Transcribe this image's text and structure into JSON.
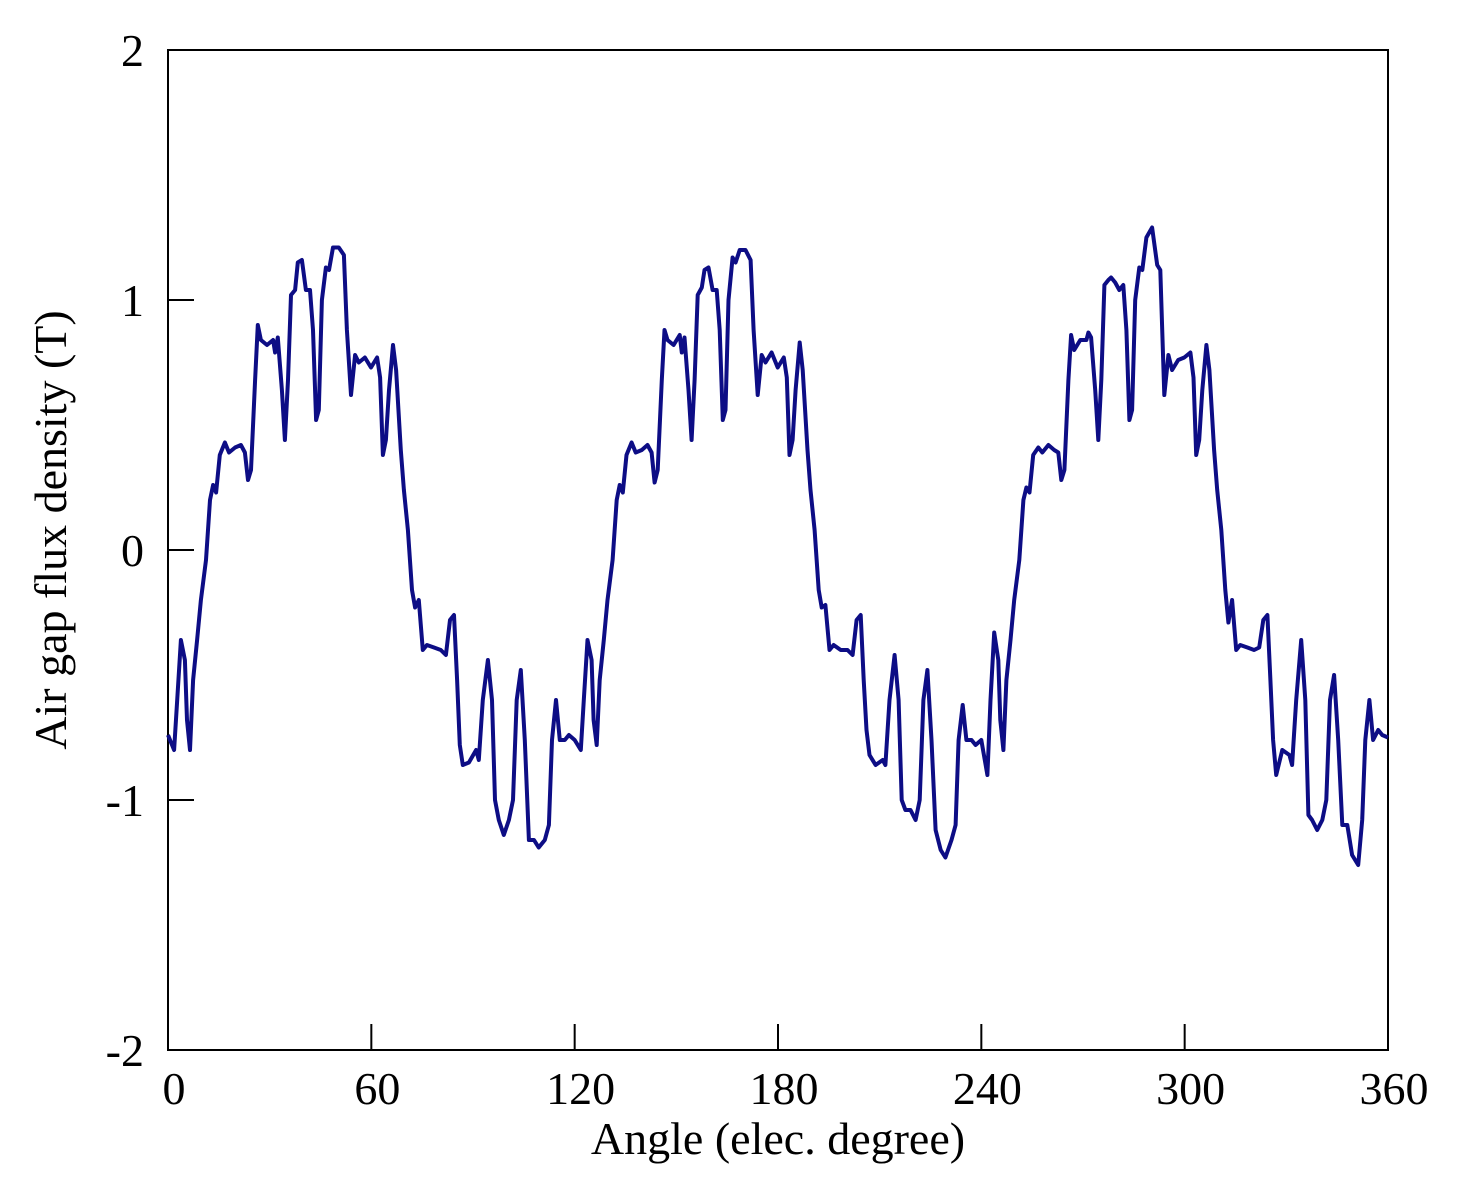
{
  "chart_data": {
    "type": "line",
    "xlabel": "Angle (elec. degree)",
    "ylabel": "Air gap flux density (T)",
    "color": "#0d0d85",
    "xlim": [
      0,
      360
    ],
    "xticks": [
      0,
      60,
      120,
      180,
      240,
      300,
      360
    ],
    "ylim": [
      -2,
      2
    ],
    "yticks": [
      -2,
      -1,
      0,
      1,
      2
    ],
    "x": [
      0,
      1.8,
      2.7,
      3.8,
      5,
      5.6,
      6.5,
      7.4,
      8.6,
      9.7,
      11.2,
      12.4,
      13.3,
      14.2,
      15.3,
      16.8,
      18,
      19.8,
      21.5,
      22.7,
      23.6,
      24.5,
      25.7,
      26.5,
      27.4,
      29.2,
      31,
      31.6,
      32.4,
      33.6,
      34.5,
      35.4,
      36.3,
      37.5,
      38.3,
      39.5,
      40.7,
      41.9,
      42.8,
      43.7,
      44.5,
      45.4,
      46.6,
      47.5,
      48.7,
      50.4,
      51.9,
      52.8,
      54,
      55.2,
      56.3,
      58.1,
      59.9,
      61.7,
      62.6,
      63.4,
      64.3,
      65.2,
      66.4,
      67.3,
      68.7,
      69.6,
      70.8,
      72,
      72.9,
      74,
      75.2,
      76.4,
      78.5,
      80.5,
      82,
      83.2,
      84.4,
      85.3,
      86.1,
      87,
      88.8,
      90.9,
      91.7,
      92.9,
      94.4,
      95.6,
      96.5,
      97.6,
      99.1,
      100.6,
      101.8,
      102.9,
      104.1,
      105.3,
      106.5,
      108,
      109.4,
      111.2,
      112.4,
      113.3,
      114.5,
      115.6,
      117.1,
      118.3,
      120,
      121.8,
      122.7,
      123.8,
      125,
      125.6,
      126.5,
      127.4,
      128.6,
      129.7,
      131.2,
      132.4,
      133.3,
      134.2,
      135.3,
      136.8,
      138,
      139.8,
      141.5,
      142.7,
      143.6,
      144.5,
      145.7,
      146.5,
      147.4,
      149.2,
      151,
      151.6,
      152.4,
      153.6,
      154.5,
      155.4,
      156.3,
      157.5,
      158.3,
      159.5,
      160.7,
      161.9,
      162.8,
      163.7,
      164.5,
      165.4,
      166.6,
      167.5,
      168.7,
      170.4,
      171.9,
      172.8,
      174,
      175.2,
      176.3,
      178.1,
      179.9,
      181.7,
      182.6,
      183.4,
      184.3,
      185.2,
      186.4,
      187.3,
      188.7,
      189.6,
      190.8,
      192,
      192.9,
      194,
      195.2,
      196.4,
      198.5,
      200.5,
      202,
      203.2,
      204.4,
      205.3,
      206.1,
      207,
      208.8,
      210.9,
      211.7,
      212.9,
      214.4,
      215.6,
      216.5,
      217.6,
      219.1,
      220.6,
      221.8,
      222.9,
      224.1,
      225.3,
      226.5,
      228,
      229.4,
      231.2,
      232.4,
      233.3,
      234.5,
      235.6,
      237.1,
      238.3,
      240,
      241.8,
      242.7,
      243.8,
      245,
      245.6,
      246.5,
      247.4,
      248.6,
      249.7,
      251.2,
      252.4,
      253.3,
      254.2,
      255.3,
      256.8,
      258,
      259.8,
      261.5,
      262.7,
      263.6,
      264.5,
      265.7,
      266.5,
      267.4,
      269.2,
      271,
      271.6,
      272.4,
      273.6,
      274.5,
      275.4,
      276.3,
      277.5,
      278.3,
      279.5,
      280.7,
      281.9,
      282.8,
      283.7,
      284.5,
      285.4,
      286.6,
      287.5,
      288.7,
      290.4,
      291.9,
      292.8,
      294,
      295.2,
      296.3,
      298.1,
      299.9,
      301.7,
      302.6,
      303.4,
      304.3,
      305.2,
      306.4,
      307.3,
      308.7,
      309.6,
      310.8,
      312,
      312.9,
      314,
      315.2,
      316.4,
      318.5,
      320.5,
      322,
      323.2,
      324.4,
      325.3,
      326.1,
      327,
      328.8,
      330.9,
      331.7,
      332.9,
      334.4,
      335.6,
      336.5,
      337.6,
      339.1,
      340.6,
      341.8,
      342.9,
      344.1,
      345.3,
      346.5,
      348,
      349.4,
      351.2,
      352.4,
      353.3,
      354.5,
      355.6,
      357.1,
      358.3,
      360
    ],
    "values": [
      -0.74,
      -0.8,
      -0.6,
      -0.36,
      -0.44,
      -0.68,
      -0.8,
      -0.52,
      -0.36,
      -0.2,
      -0.04,
      0.2,
      0.26,
      0.23,
      0.38,
      0.43,
      0.39,
      0.41,
      0.42,
      0.39,
      0.28,
      0.32,
      0.68,
      0.9,
      0.84,
      0.82,
      0.84,
      0.79,
      0.85,
      0.64,
      0.44,
      0.68,
      1.02,
      1.04,
      1.15,
      1.16,
      1.04,
      1.04,
      0.88,
      0.52,
      0.56,
      1.0,
      1.13,
      1.12,
      1.21,
      1.21,
      1.18,
      0.88,
      0.62,
      0.78,
      0.75,
      0.77,
      0.73,
      0.77,
      0.69,
      0.38,
      0.44,
      0.64,
      0.82,
      0.72,
      0.4,
      0.24,
      0.08,
      -0.16,
      -0.23,
      -0.2,
      -0.4,
      -0.38,
      -0.39,
      -0.4,
      -0.42,
      -0.28,
      -0.26,
      -0.52,
      -0.78,
      -0.86,
      -0.85,
      -0.8,
      -0.84,
      -0.6,
      -0.44,
      -0.6,
      -1.0,
      -1.08,
      -1.14,
      -1.08,
      -1.0,
      -0.6,
      -0.48,
      -0.76,
      -1.16,
      -1.16,
      -1.19,
      -1.16,
      -1.1,
      -0.76,
      -0.6,
      -0.76,
      -0.76,
      -0.74,
      -0.76,
      -0.8,
      -0.6,
      -0.36,
      -0.44,
      -0.68,
      -0.78,
      -0.52,
      -0.36,
      -0.2,
      -0.04,
      0.2,
      0.26,
      0.23,
      0.38,
      0.43,
      0.39,
      0.4,
      0.42,
      0.39,
      0.27,
      0.32,
      0.68,
      0.88,
      0.84,
      0.82,
      0.86,
      0.79,
      0.85,
      0.64,
      0.44,
      0.68,
      1.02,
      1.05,
      1.12,
      1.13,
      1.04,
      1.04,
      0.88,
      0.52,
      0.56,
      1.0,
      1.17,
      1.15,
      1.2,
      1.2,
      1.16,
      0.88,
      0.62,
      0.78,
      0.75,
      0.79,
      0.73,
      0.77,
      0.69,
      0.38,
      0.44,
      0.64,
      0.83,
      0.72,
      0.4,
      0.24,
      0.08,
      -0.16,
      -0.23,
      -0.22,
      -0.4,
      -0.38,
      -0.4,
      -0.4,
      -0.42,
      -0.28,
      -0.26,
      -0.52,
      -0.72,
      -0.82,
      -0.86,
      -0.84,
      -0.86,
      -0.6,
      -0.42,
      -0.6,
      -1.0,
      -1.04,
      -1.04,
      -1.08,
      -1.0,
      -0.6,
      -0.48,
      -0.76,
      -1.12,
      -1.2,
      -1.23,
      -1.16,
      -1.1,
      -0.76,
      -0.62,
      -0.76,
      -0.76,
      -0.78,
      -0.76,
      -0.9,
      -0.6,
      -0.33,
      -0.44,
      -0.68,
      -0.8,
      -0.52,
      -0.36,
      -0.2,
      -0.04,
      0.2,
      0.25,
      0.23,
      0.38,
      0.41,
      0.39,
      0.42,
      0.4,
      0.39,
      0.28,
      0.32,
      0.68,
      0.86,
      0.8,
      0.84,
      0.84,
      0.87,
      0.85,
      0.64,
      0.44,
      0.68,
      1.06,
      1.08,
      1.09,
      1.07,
      1.04,
      1.06,
      0.88,
      0.52,
      0.56,
      1.0,
      1.13,
      1.12,
      1.25,
      1.29,
      1.14,
      1.12,
      0.62,
      0.78,
      0.72,
      0.76,
      0.77,
      0.79,
      0.69,
      0.38,
      0.44,
      0.64,
      0.82,
      0.72,
      0.4,
      0.24,
      0.08,
      -0.16,
      -0.29,
      -0.2,
      -0.4,
      -0.38,
      -0.39,
      -0.4,
      -0.39,
      -0.28,
      -0.26,
      -0.52,
      -0.76,
      -0.9,
      -0.8,
      -0.82,
      -0.86,
      -0.6,
      -0.36,
      -0.6,
      -1.06,
      -1.08,
      -1.12,
      -1.08,
      -1.0,
      -0.6,
      -0.5,
      -0.76,
      -1.1,
      -1.1,
      -1.22,
      -1.26,
      -1.08,
      -0.76,
      -0.6,
      -0.76,
      -0.72,
      -0.74,
      -0.75
    ]
  }
}
